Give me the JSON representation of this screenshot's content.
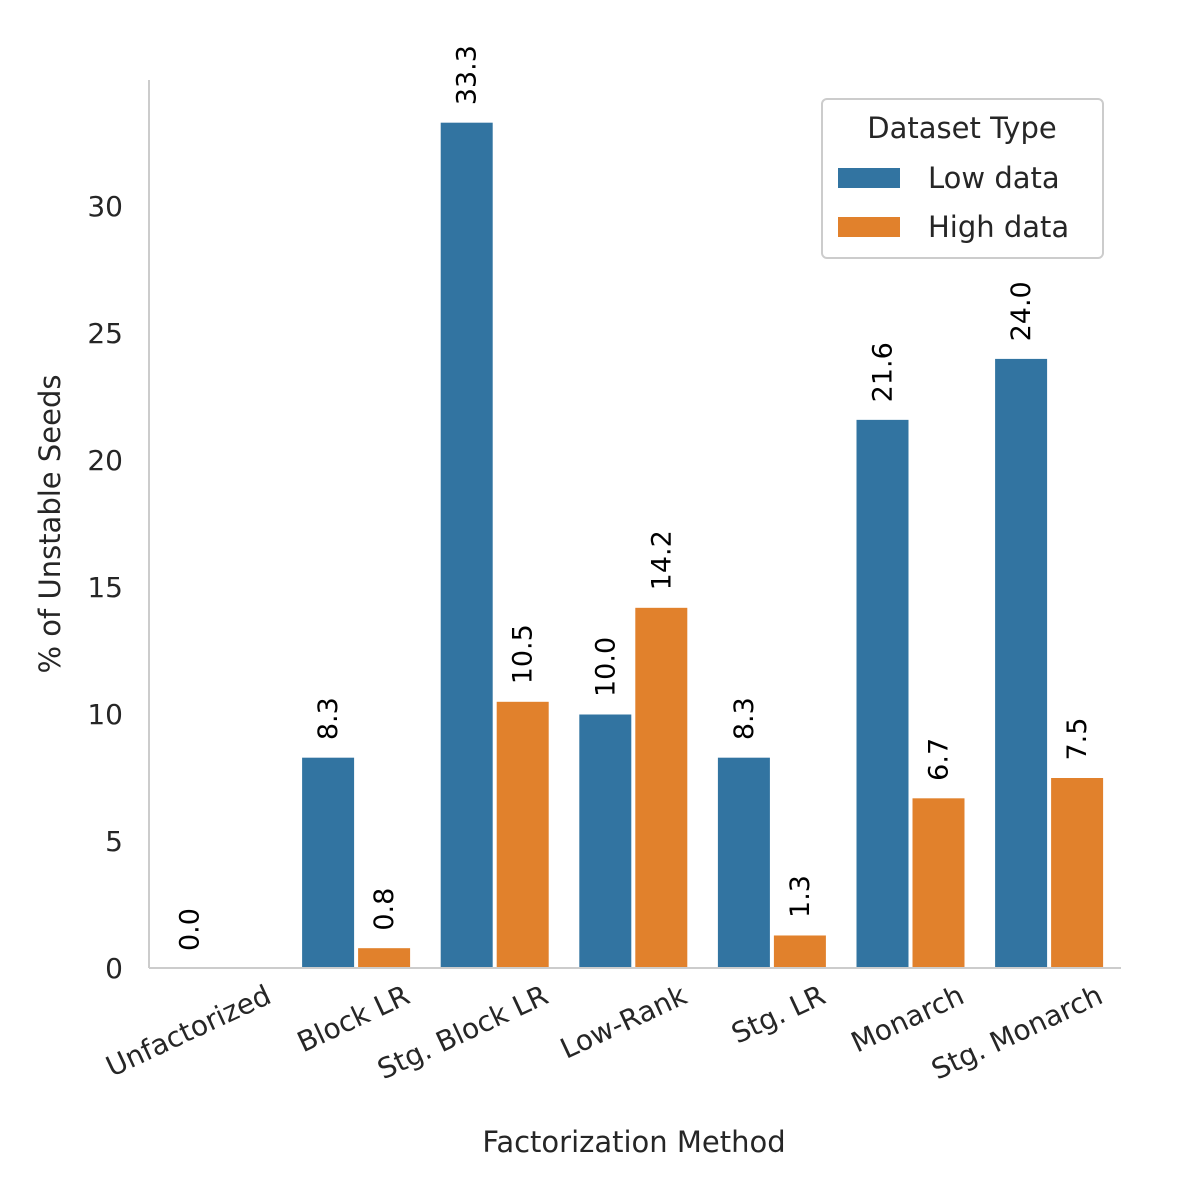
{
  "chart_data": {
    "type": "bar",
    "title": "",
    "xlabel": "Factorization Method",
    "ylabel": "% of Unstable Seeds",
    "categories": [
      "Unfactorized",
      "Block LR",
      "Stg. Block LR",
      "Low-Rank",
      "Stg. LR",
      "Monarch",
      "Stg. Monarch"
    ],
    "series": [
      {
        "name": "Low data",
        "color": "#3274a1",
        "values": [
          0.0,
          8.3,
          33.3,
          10.0,
          8.3,
          21.6,
          24.0
        ],
        "labels": [
          "0.0",
          "8.3",
          "33.3",
          "10.0",
          "8.3",
          "21.6",
          "24.0"
        ]
      },
      {
        "name": "High data",
        "color": "#e1812c",
        "values": [
          null,
          0.8,
          10.5,
          14.2,
          1.3,
          6.7,
          7.5
        ],
        "labels": [
          "",
          "0.8",
          "10.5",
          "14.2",
          "1.3",
          "6.7",
          "7.5"
        ]
      }
    ],
    "ylim": [
      0,
      35
    ],
    "yticks": [
      0,
      5,
      10,
      15,
      20,
      25,
      30
    ],
    "ytick_labels": [
      "0",
      "5",
      "10",
      "15",
      "20",
      "25",
      "30"
    ],
    "grid": false,
    "legend": {
      "title": "Dataset Type",
      "placement": "top-right"
    }
  }
}
